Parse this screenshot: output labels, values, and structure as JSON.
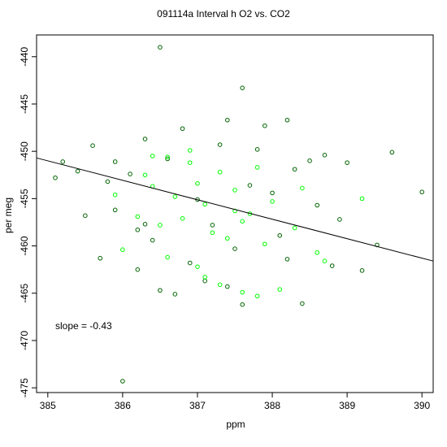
{
  "chart_data": {
    "type": "scatter",
    "title": "091114a   Interval h O2 vs. CO2",
    "xlabel": "ppm",
    "ylabel": "per meg",
    "xlim": [
      384.85,
      390.15
    ],
    "ylim": [
      -475.5,
      -437.7
    ],
    "xticks": [
      385,
      386,
      387,
      388,
      389,
      390
    ],
    "yticks": [
      -440,
      -445,
      -450,
      -455,
      -460,
      -465,
      -470,
      -475
    ],
    "grid": false,
    "legend": "none",
    "annotation": "slope =  -0.43",
    "fit_line": {
      "slope": -0.43,
      "x": [
        384.85,
        390.15
      ],
      "y": [
        -450.7,
        -461.6
      ]
    },
    "colors": {
      "dark_points": "#006400",
      "light_points": "#00ff00",
      "fit_line": "#000000",
      "axes": "#000000"
    },
    "series": [
      {
        "color": "#006400",
        "x": [
          386.5,
          387.6,
          386.0,
          385.2,
          389.6,
          390.0,
          385.1,
          385.6,
          386.3,
          386.2,
          386.8,
          387.4,
          387.9,
          388.2,
          388.5,
          388.7,
          389.4,
          389.0,
          388.8,
          386.1,
          386.6,
          387.3,
          387.8,
          388.3,
          385.9,
          386.4,
          387.0,
          387.2,
          387.7,
          388.1,
          388.6,
          385.8,
          385.5,
          385.4,
          386.9,
          387.5,
          388.0,
          388.9,
          389.2,
          386.7,
          387.1,
          386.5,
          385.7,
          386.2,
          387.6,
          388.4,
          387.4,
          386.3,
          385.9,
          388.2
        ],
        "y": [
          -439.0,
          -443.3,
          -474.3,
          -451.1,
          -450.1,
          -454.3,
          -452.8,
          -449.4,
          -448.7,
          -462.5,
          -447.6,
          -446.7,
          -447.3,
          -446.7,
          -451.0,
          -450.4,
          -459.9,
          -451.2,
          -462.1,
          -452.4,
          -450.8,
          -449.3,
          -449.8,
          -451.9,
          -456.2,
          -459.4,
          -455.1,
          -457.8,
          -453.6,
          -458.9,
          -455.7,
          -453.2,
          -456.8,
          -452.1,
          -461.8,
          -460.3,
          -454.4,
          -457.2,
          -462.6,
          -465.1,
          -463.7,
          -464.7,
          -461.3,
          -458.3,
          -466.2,
          -466.1,
          -464.3,
          -457.7,
          -451.1,
          -461.4
        ]
      },
      {
        "color": "#00ff00",
        "x": [
          386.6,
          386.9,
          387.0,
          387.3,
          387.8,
          386.4,
          386.7,
          387.1,
          387.5,
          387.7,
          388.0,
          388.4,
          386.2,
          386.5,
          386.8,
          387.2,
          387.4,
          387.6,
          387.9,
          388.3,
          388.6,
          386.3,
          386.9,
          387.0,
          387.1,
          387.3,
          386.6,
          387.6,
          388.1,
          387.8,
          386.0,
          385.9,
          389.2,
          388.7,
          387.5,
          386.4
        ],
        "y": [
          -450.6,
          -451.2,
          -453.4,
          -452.2,
          -451.7,
          -453.7,
          -454.8,
          -455.6,
          -454.1,
          -456.6,
          -455.3,
          -453.9,
          -456.9,
          -457.8,
          -457.1,
          -458.6,
          -459.2,
          -457.4,
          -459.8,
          -458.1,
          -460.7,
          -452.5,
          -449.9,
          -462.2,
          -463.3,
          -464.1,
          -461.2,
          -464.9,
          -464.6,
          -465.3,
          -460.4,
          -454.6,
          -455.0,
          -461.6,
          -456.3,
          -450.5
        ]
      }
    ]
  }
}
